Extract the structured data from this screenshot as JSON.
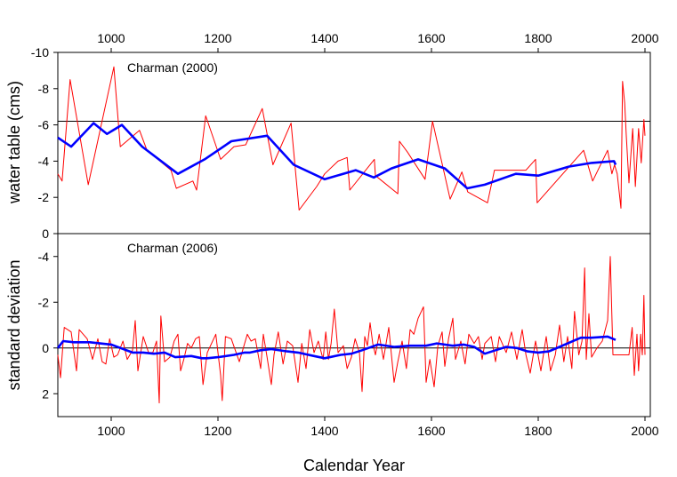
{
  "chart_data": [
    {
      "type": "line",
      "panel": "top",
      "annotation": "Charman (2000)",
      "ylabel": "water table (cms)",
      "xlabel": "Calendar Year",
      "xlim": [
        900,
        2010
      ],
      "ylim": [
        -10,
        0
      ],
      "y_inverted": true,
      "x_ticks": [
        1000,
        1200,
        1400,
        1600,
        1800,
        2000
      ],
      "y_ticks": [
        -10,
        -8,
        -6,
        -4,
        -2,
        0
      ],
      "reference_line": -6.2,
      "series": [
        {
          "name": "raw",
          "color": "#ff0000",
          "x": [
            900,
            908,
            923,
            957,
            1005,
            1017,
            1053,
            1067,
            1112,
            1122,
            1153,
            1160,
            1177,
            1205,
            1230,
            1252,
            1283,
            1303,
            1337,
            1352,
            1385,
            1400,
            1425,
            1442,
            1447,
            1493,
            1495,
            1537,
            1540,
            1555,
            1588,
            1602,
            1635,
            1657,
            1668,
            1705,
            1718,
            1777,
            1795,
            1798,
            1885,
            1902,
            1930,
            1938,
            1943,
            1948,
            1955,
            1958,
            1962,
            1965,
            1970,
            1977,
            1982,
            1988,
            1993,
            1998,
            2000
          ],
          "y": [
            -3.3,
            -2.9,
            -8.5,
            -2.7,
            -9.2,
            -4.8,
            -5.7,
            -4.6,
            -3.5,
            -2.5,
            -2.9,
            -2.4,
            -6.5,
            -4.1,
            -4.8,
            -4.9,
            -6.9,
            -3.8,
            -6.1,
            -1.3,
            -2.6,
            -3.3,
            -4.0,
            -4.2,
            -2.4,
            -4.1,
            -3.2,
            -2.2,
            -5.1,
            -4.5,
            -3.0,
            -6.2,
            -1.9,
            -3.4,
            -2.3,
            -1.7,
            -3.5,
            -3.5,
            -4.1,
            -1.7,
            -4.6,
            -2.9,
            -4.6,
            -3.3,
            -3.8,
            -3.3,
            -1.4,
            -8.4,
            -7.2,
            -5.4,
            -2.8,
            -5.8,
            -2.6,
            -5.8,
            -3.9,
            -6.3,
            -5.4
          ]
        },
        {
          "name": "smoothed",
          "color": "#0000ff",
          "x": [
            900,
            925,
            967,
            992,
            1020,
            1058,
            1125,
            1175,
            1225,
            1292,
            1342,
            1400,
            1458,
            1492,
            1525,
            1575,
            1625,
            1667,
            1700,
            1758,
            1800,
            1858,
            1900,
            1942,
            1945
          ],
          "y": [
            -5.3,
            -4.8,
            -6.1,
            -5.5,
            -6.0,
            -4.8,
            -3.3,
            -4.1,
            -5.1,
            -5.4,
            -3.8,
            -3.0,
            -3.5,
            -3.1,
            -3.6,
            -4.1,
            -3.6,
            -2.5,
            -2.7,
            -3.3,
            -3.2,
            -3.7,
            -3.9,
            -4.0,
            -3.8
          ]
        }
      ]
    },
    {
      "type": "line",
      "panel": "bottom",
      "annotation": "Charman (2006)",
      "ylabel": "standard deviation",
      "xlabel": "Calendar Year",
      "xlim": [
        900,
        2010
      ],
      "ylim": [
        -5,
        3
      ],
      "y_inverted": true,
      "x_ticks": [
        1000,
        1200,
        1400,
        1600,
        1800,
        2000
      ],
      "y_ticks": [
        -4,
        -2,
        0,
        2
      ],
      "reference_line": 0,
      "series": [
        {
          "name": "raw",
          "color": "#ff0000",
          "x": [
            900,
            905,
            912,
            925,
            935,
            940,
            955,
            965,
            975,
            983,
            990,
            997,
            1005,
            1012,
            1022,
            1030,
            1040,
            1045,
            1050,
            1060,
            1070,
            1078,
            1085,
            1090,
            1093,
            1100,
            1110,
            1118,
            1125,
            1130,
            1136,
            1143,
            1150,
            1158,
            1165,
            1172,
            1180,
            1196,
            1205,
            1208,
            1214,
            1225,
            1240,
            1255,
            1262,
            1270,
            1280,
            1285,
            1292,
            1300,
            1305,
            1313,
            1322,
            1330,
            1340,
            1345,
            1350,
            1357,
            1365,
            1372,
            1380,
            1388,
            1397,
            1402,
            1407,
            1412,
            1418,
            1425,
            1435,
            1442,
            1450,
            1457,
            1465,
            1470,
            1475,
            1480,
            1485,
            1490,
            1495,
            1502,
            1510,
            1520,
            1530,
            1537,
            1545,
            1553,
            1560,
            1567,
            1575,
            1585,
            1590,
            1597,
            1605,
            1612,
            1620,
            1625,
            1632,
            1640,
            1645,
            1655,
            1663,
            1670,
            1680,
            1688,
            1695,
            1700,
            1712,
            1720,
            1727,
            1740,
            1750,
            1760,
            1770,
            1777,
            1785,
            1795,
            1805,
            1815,
            1823,
            1832,
            1840,
            1848,
            1855,
            1863,
            1868,
            1876,
            1882,
            1887,
            1890,
            1895,
            1900,
            1910,
            1920,
            1930,
            1935,
            1940,
            1955,
            1970,
            1976,
            1980,
            1985,
            1988,
            1992,
            1995,
            1998,
            2000
          ],
          "y": [
            0.3,
            1.3,
            -0.9,
            -0.7,
            1.0,
            -0.8,
            -0.4,
            0.5,
            -0.4,
            0.6,
            0.7,
            -0.4,
            0.4,
            0.3,
            -0.3,
            0.5,
            0.1,
            -1.2,
            1.0,
            -0.5,
            0.2,
            0.2,
            -0.3,
            2.4,
            -1.4,
            0.6,
            0.4,
            -0.3,
            -0.6,
            1.0,
            0.5,
            -0.2,
            0.0,
            -0.4,
            -0.5,
            1.6,
            0.2,
            -0.6,
            1.2,
            2.3,
            -0.5,
            -0.4,
            0.6,
            -0.6,
            -0.3,
            -0.4,
            0.9,
            -0.6,
            0.4,
            1.6,
            0.3,
            -0.7,
            0.7,
            -0.3,
            -0.1,
            0.7,
            1.5,
            -0.2,
            0.9,
            -0.8,
            0.2,
            -0.3,
            0.5,
            -0.7,
            0.5,
            -0.2,
            -1.7,
            0.2,
            -0.1,
            0.9,
            0.4,
            -0.4,
            0.2,
            1.9,
            -0.5,
            -0.1,
            -1.1,
            -0.2,
            0.3,
            -0.6,
            0.5,
            -0.9,
            1.5,
            0.6,
            -0.3,
            0.9,
            -0.8,
            -0.6,
            -1.3,
            -1.8,
            1.5,
            0.5,
            1.7,
            -0.1,
            -0.7,
            0.8,
            -0.4,
            -1.3,
            0.5,
            -0.3,
            0.7,
            -0.6,
            -0.2,
            -0.5,
            0.5,
            -0.2,
            -0.5,
            0.6,
            -0.5,
            0.2,
            -0.7,
            0.5,
            -0.8,
            0.3,
            1.1,
            -0.3,
            1.0,
            -0.5,
            1.0,
            0.3,
            -1.0,
            0.6,
            -0.5,
            0.9,
            -1.6,
            0.3,
            -0.3,
            -3.5,
            0.5,
            -1.5,
            0.4,
            0.0,
            -0.3,
            -1.2,
            -4.0,
            0.3,
            0.3,
            0.3,
            -0.9,
            1.2,
            -0.6,
            1.0,
            -0.6,
            0.3,
            -2.3,
            0.3
          ]
        },
        {
          "name": "smoothed",
          "color": "#0000ff",
          "x": [
            900,
            910,
            930,
            960,
            1000,
            1040,
            1060,
            1080,
            1100,
            1120,
            1150,
            1170,
            1180,
            1200,
            1230,
            1250,
            1260,
            1280,
            1300,
            1330,
            1350,
            1380,
            1400,
            1430,
            1450,
            1470,
            1500,
            1530,
            1560,
            1590,
            1610,
            1640,
            1660,
            1680,
            1700,
            1720,
            1740,
            1760,
            1780,
            1800,
            1820,
            1840,
            1860,
            1870,
            1880,
            1900,
            1930,
            1945
          ],
          "y": [
            0.0,
            -0.3,
            -0.25,
            -0.25,
            -0.15,
            0.2,
            0.2,
            0.25,
            0.2,
            0.4,
            0.35,
            0.45,
            0.45,
            0.4,
            0.3,
            0.2,
            0.2,
            0.1,
            0.05,
            0.15,
            0.2,
            0.35,
            0.45,
            0.3,
            0.25,
            0.1,
            -0.15,
            -0.05,
            -0.1,
            -0.1,
            -0.2,
            -0.1,
            -0.15,
            -0.05,
            0.25,
            0.1,
            -0.05,
            0.0,
            0.15,
            0.2,
            0.15,
            -0.05,
            -0.25,
            -0.35,
            -0.45,
            -0.45,
            -0.5,
            -0.35
          ]
        }
      ]
    }
  ]
}
